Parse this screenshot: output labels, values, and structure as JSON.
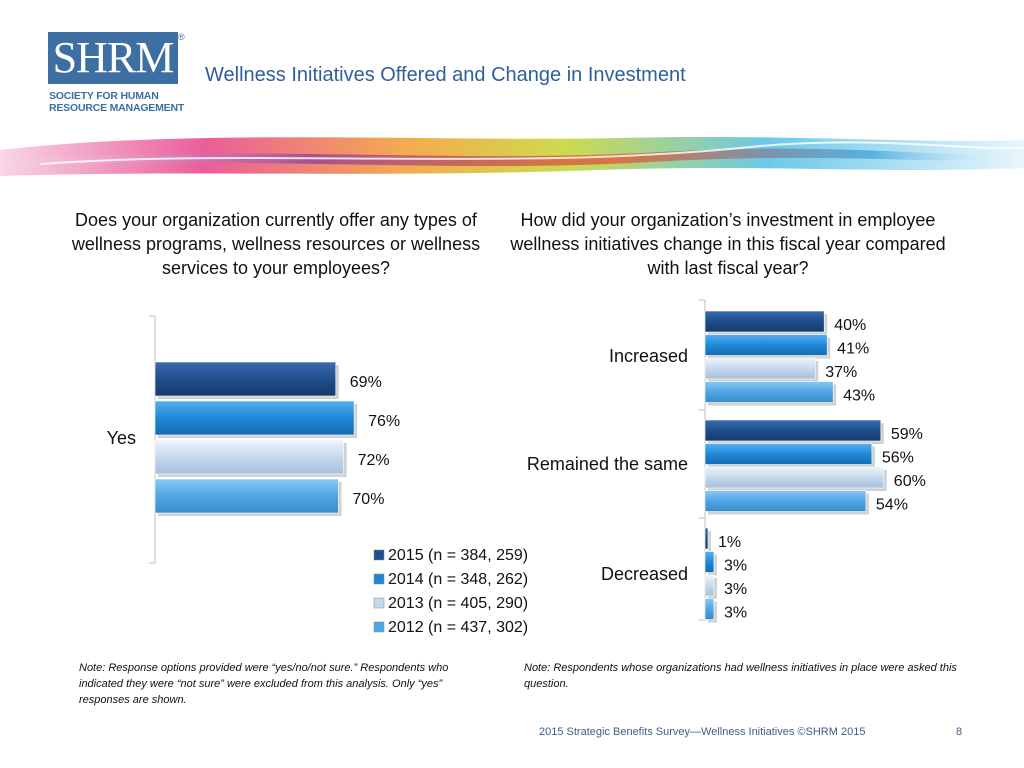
{
  "header": {
    "logo_text": "SHRM",
    "logo_registered": "®",
    "logo_subtitle_line1": "SOCIETY FOR HUMAN",
    "logo_subtitle_line2": "RESOURCE MANAGEMENT",
    "title": "Wellness Initiatives Offered and Change in Investment"
  },
  "colors": {
    "title": "#2f5f98",
    "series": [
      "#1f4e8c",
      "#1e88d8",
      "#c6d8ec",
      "#4fa6e6"
    ]
  },
  "chart_data": [
    {
      "type": "bar",
      "orientation": "horizontal",
      "title": "Does your organization currently offer any types of wellness programs, wellness resources or wellness services to your employees?",
      "categories": [
        "Yes"
      ],
      "series": [
        {
          "name": "2015 (n = 384, 259)",
          "values": [
            69
          ],
          "labels": [
            "69%"
          ]
        },
        {
          "name": "2014 (n = 348, 262)",
          "values": [
            76
          ],
          "labels": [
            "76%"
          ]
        },
        {
          "name": "2013 (n = 405, 290)",
          "values": [
            72
          ],
          "labels": [
            "72%"
          ]
        },
        {
          "name": "2012 (n = 437, 302)",
          "values": [
            70
          ],
          "labels": [
            "70%"
          ]
        }
      ],
      "xlim": [
        0,
        100
      ],
      "grid": false,
      "legend": "bottom-right",
      "note": "Note: Response options provided were “yes/no/not sure.” Respondents who indicated they were “not sure” were excluded from this analysis. Only “yes” responses are shown."
    },
    {
      "type": "bar",
      "orientation": "horizontal",
      "title": "How did your organization’s investment in employee wellness initiatives change in this fiscal year compared with last fiscal year?",
      "categories": [
        "Increased",
        "Remained the same",
        "Decreased"
      ],
      "series": [
        {
          "name": "2015",
          "values": [
            40,
            59,
            1
          ],
          "labels": [
            "40%",
            "59%",
            "1%"
          ]
        },
        {
          "name": "2014",
          "values": [
            41,
            56,
            3
          ],
          "labels": [
            "41%",
            "56%",
            "3%"
          ]
        },
        {
          "name": "2013",
          "values": [
            37,
            60,
            3
          ],
          "labels": [
            "37%",
            "60%",
            "3%"
          ]
        },
        {
          "name": "2012",
          "values": [
            43,
            54,
            3
          ],
          "labels": [
            "43%",
            "54%",
            "3%"
          ]
        }
      ],
      "xlim": [
        0,
        100
      ],
      "grid": false,
      "note": "Note: Respondents whose organizations had wellness initiatives in place were asked this question."
    }
  ],
  "footer": {
    "source": "2015 Strategic Benefits Survey—Wellness Initiatives ©SHRM 2015",
    "page_number": "8"
  }
}
